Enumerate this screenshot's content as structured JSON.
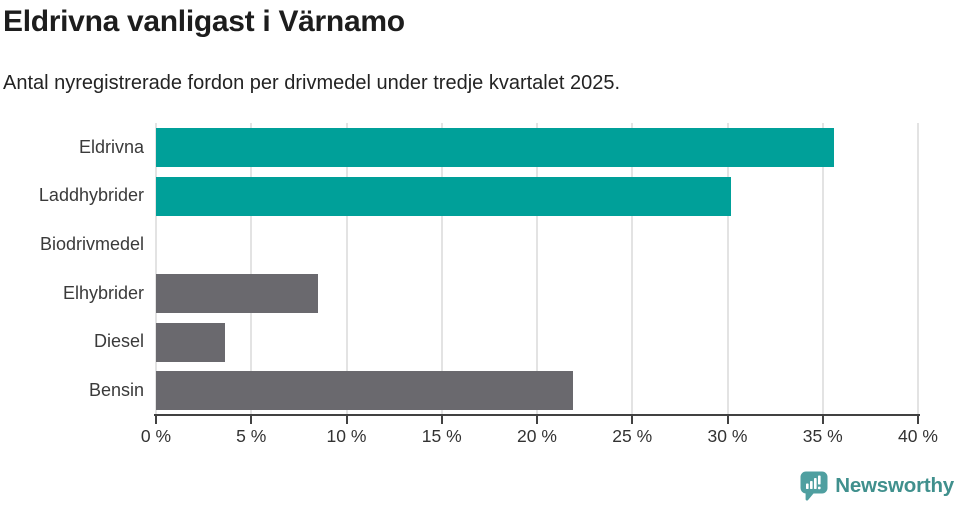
{
  "title": "Eldrivna vanligast i Värnamo",
  "subtitle": "Antal nyregistrerade fordon per drivmedel under tredje kvartalet 2025.",
  "colors": {
    "teal": "#00a099",
    "gray": "#6a696e",
    "gridline": "#e3e3e3",
    "axis": "#414141",
    "title_text": "#1d1d1d",
    "category_label": "#3a3a3a",
    "logo_teal": "#40908d",
    "background": "#ffffff"
  },
  "chart_data": {
    "type": "bar",
    "orientation": "horizontal",
    "title": "Eldrivna vanligast i Värnamo",
    "subtitle": "Antal nyregistrerade fordon per drivmedel under tredje kvartalet 2025.",
    "categories": [
      "Eldrivna",
      "Laddhybrider",
      "Biodrivmedel",
      "Elhybrider",
      "Diesel",
      "Bensin"
    ],
    "values": [
      35.6,
      30.2,
      0,
      8.5,
      3.6,
      21.9
    ],
    "unit": "%",
    "bar_colors": [
      "#00a099",
      "#00a099",
      "#00a099",
      "#6a696e",
      "#6a696e",
      "#6a696e"
    ],
    "xlim": [
      0,
      40
    ],
    "xticks": [
      {
        "value": 0,
        "label": "0 %"
      },
      {
        "value": 5,
        "label": "5 %"
      },
      {
        "value": 10,
        "label": "10 %"
      },
      {
        "value": 15,
        "label": "15 %"
      },
      {
        "value": 20,
        "label": "20 %"
      },
      {
        "value": 25,
        "label": "25 %"
      },
      {
        "value": 30,
        "label": "30 %"
      },
      {
        "value": 35,
        "label": "35 %"
      },
      {
        "value": 40,
        "label": "40 %"
      }
    ],
    "grid": true,
    "legend": false
  },
  "footer": {
    "brand": "Newsworthy",
    "logo_icon": "speech-bubble-bar-chart-icon"
  }
}
